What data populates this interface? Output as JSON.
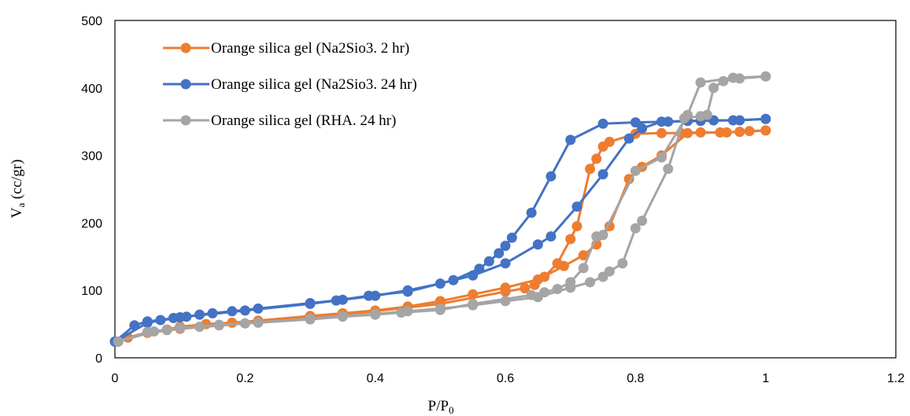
{
  "chart_data": {
    "type": "line",
    "title": "",
    "xlabel": {
      "main": "P/P",
      "sub": "0"
    },
    "ylabel": {
      "main": "V",
      "sub": "a",
      "suffix": " (cc/gr)"
    },
    "xlim": [
      0,
      1.2
    ],
    "ylim": [
      0,
      500
    ],
    "xticks": [
      0,
      0.2,
      0.4,
      0.6,
      0.8,
      1,
      1.2
    ],
    "xtick_labels": [
      "0",
      "0.2",
      "0.4",
      "0.6",
      "0.8",
      "1",
      "1.2"
    ],
    "yticks": [
      0,
      100,
      200,
      300,
      400,
      500
    ],
    "ytick_labels": [
      "0",
      "100",
      "200",
      "300",
      "400",
      "500"
    ],
    "grid": false,
    "legend_position": "top-left",
    "series": [
      {
        "name": "Orange silica gel (Na2Sio3. 2 hr)",
        "color": "#ED7D31",
        "adsorption": [
          [
            0.005,
            24
          ],
          [
            0.02,
            30
          ],
          [
            0.05,
            38
          ],
          [
            0.08,
            42
          ],
          [
            0.1,
            46
          ],
          [
            0.14,
            50
          ],
          [
            0.18,
            52
          ],
          [
            0.22,
            55
          ],
          [
            0.3,
            62
          ],
          [
            0.35,
            66
          ],
          [
            0.4,
            70
          ],
          [
            0.45,
            76
          ],
          [
            0.5,
            84
          ],
          [
            0.55,
            94
          ],
          [
            0.6,
            104
          ],
          [
            0.65,
            116
          ],
          [
            0.69,
            136
          ],
          [
            0.72,
            152
          ],
          [
            0.74,
            168
          ],
          [
            0.76,
            195
          ],
          [
            0.79,
            265
          ],
          [
            0.81,
            283
          ],
          [
            0.84,
            300
          ],
          [
            0.88,
            333
          ],
          [
            0.93,
            334
          ],
          [
            0.96,
            335
          ],
          [
            1.0,
            337
          ]
        ],
        "desorption": [
          [
            1.0,
            337
          ],
          [
            0.975,
            336
          ],
          [
            0.96,
            335
          ],
          [
            0.94,
            334
          ],
          [
            0.9,
            334
          ],
          [
            0.87,
            333
          ],
          [
            0.84,
            333
          ],
          [
            0.8,
            332
          ],
          [
            0.76,
            320
          ],
          [
            0.75,
            313
          ],
          [
            0.74,
            295
          ],
          [
            0.73,
            280
          ],
          [
            0.71,
            195
          ],
          [
            0.7,
            176
          ],
          [
            0.68,
            140
          ],
          [
            0.66,
            120
          ],
          [
            0.645,
            108
          ],
          [
            0.63,
            103
          ],
          [
            0.6,
            98
          ],
          [
            0.5,
            80
          ],
          [
            0.4,
            69
          ],
          [
            0.3,
            60
          ],
          [
            0.2,
            51
          ],
          [
            0.1,
            43
          ],
          [
            0.05,
            37
          ],
          [
            0.005,
            24
          ]
        ]
      },
      {
        "name": "Orange silica gel (Na2Sio3. 24 hr)",
        "color": "#4472C4",
        "adsorption": [
          [
            0.0,
            24
          ],
          [
            0.03,
            48
          ],
          [
            0.05,
            54
          ],
          [
            0.07,
            56
          ],
          [
            0.09,
            59
          ],
          [
            0.11,
            61
          ],
          [
            0.13,
            64
          ],
          [
            0.15,
            66
          ],
          [
            0.18,
            69
          ],
          [
            0.22,
            73
          ],
          [
            0.3,
            81
          ],
          [
            0.35,
            86
          ],
          [
            0.4,
            92
          ],
          [
            0.45,
            100
          ],
          [
            0.5,
            110
          ],
          [
            0.55,
            122
          ],
          [
            0.6,
            140
          ],
          [
            0.65,
            168
          ],
          [
            0.67,
            180
          ],
          [
            0.71,
            224
          ],
          [
            0.75,
            272
          ],
          [
            0.79,
            325
          ],
          [
            0.81,
            340
          ],
          [
            0.84,
            350
          ],
          [
            0.88,
            351
          ],
          [
            0.92,
            352
          ],
          [
            0.96,
            352
          ],
          [
            1.0,
            354
          ]
        ],
        "desorption": [
          [
            1.0,
            354
          ],
          [
            0.95,
            352
          ],
          [
            0.9,
            351
          ],
          [
            0.85,
            350
          ],
          [
            0.8,
            349
          ],
          [
            0.75,
            347
          ],
          [
            0.7,
            323
          ],
          [
            0.67,
            269
          ],
          [
            0.64,
            215
          ],
          [
            0.61,
            178
          ],
          [
            0.6,
            166
          ],
          [
            0.59,
            155
          ],
          [
            0.575,
            143
          ],
          [
            0.56,
            132
          ],
          [
            0.52,
            115
          ],
          [
            0.45,
            98
          ],
          [
            0.39,
            92
          ],
          [
            0.34,
            85
          ],
          [
            0.3,
            80
          ],
          [
            0.2,
            70
          ],
          [
            0.1,
            60
          ],
          [
            0.05,
            52
          ],
          [
            0.0,
            24
          ]
        ]
      },
      {
        "name": "Orange silica gel (RHA. 24 hr)",
        "color": "#A5A5A5",
        "adsorption": [
          [
            0.005,
            24
          ],
          [
            0.05,
            38
          ],
          [
            0.08,
            41
          ],
          [
            0.1,
            44
          ],
          [
            0.13,
            46
          ],
          [
            0.16,
            48
          ],
          [
            0.2,
            51
          ],
          [
            0.3,
            58
          ],
          [
            0.35,
            62
          ],
          [
            0.4,
            65
          ],
          [
            0.45,
            69
          ],
          [
            0.5,
            73
          ],
          [
            0.55,
            78
          ],
          [
            0.6,
            84
          ],
          [
            0.65,
            90
          ],
          [
            0.7,
            104
          ],
          [
            0.73,
            112
          ],
          [
            0.75,
            120
          ],
          [
            0.76,
            128
          ],
          [
            0.78,
            140
          ],
          [
            0.8,
            192
          ],
          [
            0.81,
            203
          ],
          [
            0.85,
            280
          ],
          [
            0.875,
            355
          ],
          [
            0.9,
            358
          ],
          [
            0.91,
            360
          ],
          [
            0.92,
            400
          ],
          [
            0.935,
            410
          ],
          [
            0.96,
            414
          ],
          [
            1.0,
            417
          ]
        ],
        "desorption": [
          [
            1.0,
            417
          ],
          [
            0.95,
            415
          ],
          [
            0.9,
            408
          ],
          [
            0.88,
            360
          ],
          [
            0.84,
            297
          ],
          [
            0.8,
            277
          ],
          [
            0.75,
            182
          ],
          [
            0.74,
            180
          ],
          [
            0.72,
            133
          ],
          [
            0.7,
            112
          ],
          [
            0.68,
            102
          ],
          [
            0.66,
            97
          ],
          [
            0.64,
            93
          ],
          [
            0.55,
            80
          ],
          [
            0.5,
            71
          ],
          [
            0.44,
            67
          ],
          [
            0.4,
            64
          ],
          [
            0.35,
            61
          ],
          [
            0.3,
            57
          ],
          [
            0.22,
            52
          ],
          [
            0.16,
            49
          ],
          [
            0.1,
            44
          ],
          [
            0.06,
            39
          ],
          [
            0.005,
            24
          ]
        ]
      }
    ]
  }
}
